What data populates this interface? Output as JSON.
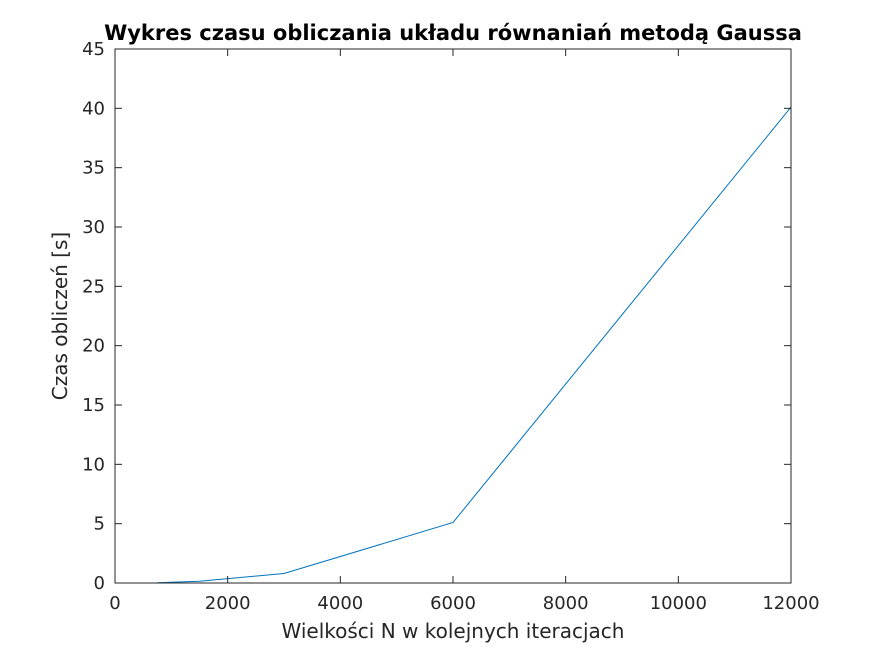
{
  "chart_data": {
    "type": "line",
    "title": "Wykres czasu obliczania układu równaniań metodą Gaussa",
    "xlabel": "Wielkości N w kolejnych iteracjach",
    "ylabel": "Czas obliczeń [s]",
    "xlim": [
      0,
      12000
    ],
    "ylim": [
      0,
      45
    ],
    "xticks": [
      "0",
      "2000",
      "4000",
      "6000",
      "8000",
      "10000",
      "12000"
    ],
    "yticks": [
      "0",
      "5",
      "10",
      "15",
      "20",
      "25",
      "30",
      "35",
      "40",
      "45"
    ],
    "grid": false,
    "series": [
      {
        "color": "#0072bd",
        "x": [
          750,
          1500,
          3000,
          6000,
          12000
        ],
        "y": [
          0.02,
          0.15,
          0.8,
          5.1,
          40.1
        ]
      }
    ]
  }
}
